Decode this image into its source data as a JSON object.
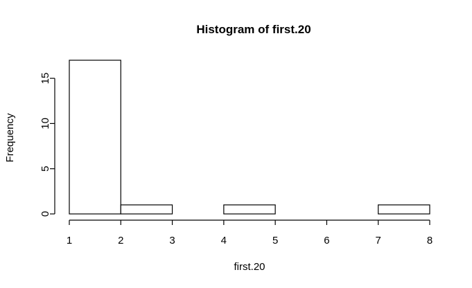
{
  "chart_data": {
    "type": "bar",
    "title": "Histogram of first.20",
    "xlabel": "first.20",
    "ylabel": "Frequency",
    "bins": [
      {
        "from": 1,
        "to": 2,
        "count": 17
      },
      {
        "from": 2,
        "to": 3,
        "count": 1
      },
      {
        "from": 3,
        "to": 4,
        "count": 0
      },
      {
        "from": 4,
        "to": 5,
        "count": 1
      },
      {
        "from": 5,
        "to": 6,
        "count": 0
      },
      {
        "from": 6,
        "to": 7,
        "count": 0
      },
      {
        "from": 7,
        "to": 8,
        "count": 1
      }
    ],
    "xlim": [
      1,
      8
    ],
    "ylim": [
      0,
      17
    ],
    "x_ticks": [
      1,
      2,
      3,
      4,
      5,
      6,
      7,
      8
    ],
    "y_ticks": [
      0,
      5,
      10,
      15
    ],
    "grid": false,
    "bar_fill": "#ffffff",
    "bar_stroke": "#000000"
  }
}
